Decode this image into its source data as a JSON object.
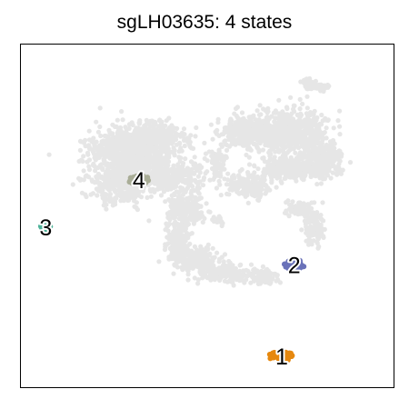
{
  "chart_data": {
    "type": "scatter",
    "title": "sgLH03635: 4 states",
    "xlabel": "",
    "ylabel": "",
    "grid": false,
    "legend": "none",
    "background_color": "#e6e6e6",
    "highlight_clusters": [
      {
        "label": "1",
        "color": "#e6880f",
        "center": [
          0.48,
          -0.86
        ],
        "spread": [
          0.085,
          0.028
        ]
      },
      {
        "label": "2",
        "color": "#6a72b9",
        "center": [
          0.56,
          -0.3
        ],
        "spread": [
          0.07,
          0.032
        ]
      },
      {
        "label": "3",
        "color": "#4fb39a",
        "center": [
          -1.04,
          -0.07
        ],
        "spread": [
          0.035,
          0.014
        ]
      },
      {
        "label": "4",
        "color": "#a9ad97",
        "center": [
          -0.44,
          0.22
        ],
        "spread": [
          0.07,
          0.03
        ]
      }
    ]
  }
}
